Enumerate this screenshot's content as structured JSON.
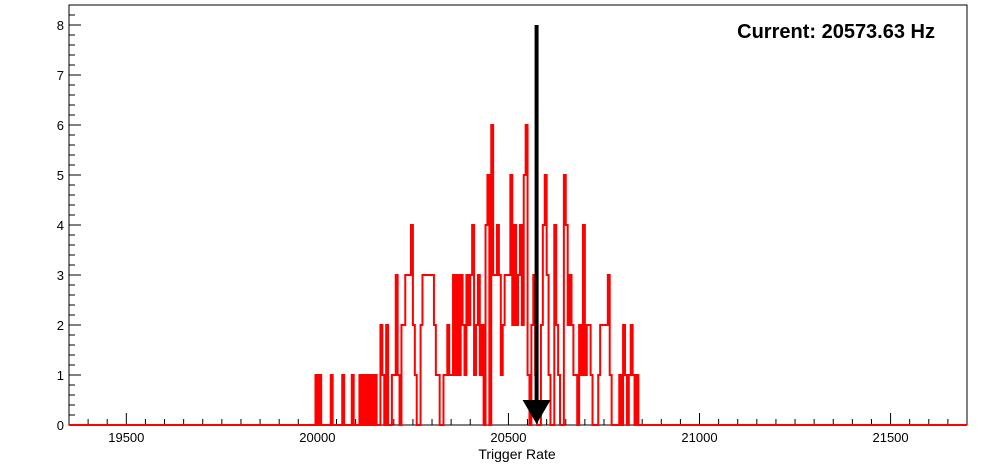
{
  "chart_data": {
    "type": "histogram",
    "xlabel": "Trigger Rate",
    "ylabel": "",
    "title": "",
    "xlim": [
      19350,
      21700
    ],
    "ylim": [
      0,
      8.4
    ],
    "x_ticks": [
      19500,
      20000,
      20500,
      21000,
      21500
    ],
    "y_ticks": [
      0,
      1,
      2,
      3,
      4,
      5,
      6,
      7,
      8
    ],
    "grid": false,
    "series_color": "#ff0000",
    "annotation": {
      "text": "Current: 20573.63 Hz",
      "marker_value": 20573.63,
      "marker_type": "arrow",
      "arrow_top_y": 8.0,
      "arrow_bottom_y": 0.0
    },
    "bin_width": 5,
    "bins": [
      [
        19995,
        1
      ],
      [
        20000,
        0
      ],
      [
        20005,
        1
      ],
      [
        20010,
        0
      ],
      [
        20035,
        1
      ],
      [
        20040,
        0
      ],
      [
        20065,
        1
      ],
      [
        20070,
        0
      ],
      [
        20090,
        1
      ],
      [
        20095,
        0
      ],
      [
        20110,
        1
      ],
      [
        20115,
        0
      ],
      [
        20120,
        1
      ],
      [
        20125,
        0
      ],
      [
        20130,
        1
      ],
      [
        20135,
        0
      ],
      [
        20140,
        1
      ],
      [
        20145,
        0
      ],
      [
        20150,
        1
      ],
      [
        20155,
        0
      ],
      [
        20165,
        2
      ],
      [
        20170,
        1
      ],
      [
        20175,
        0
      ],
      [
        20180,
        2
      ],
      [
        20185,
        0
      ],
      [
        20195,
        1
      ],
      [
        20205,
        3
      ],
      [
        20210,
        1
      ],
      [
        20215,
        0
      ],
      [
        20220,
        2
      ],
      [
        20230,
        3
      ],
      [
        20245,
        4
      ],
      [
        20250,
        2
      ],
      [
        20255,
        1
      ],
      [
        20260,
        0
      ],
      [
        20270,
        2
      ],
      [
        20275,
        3
      ],
      [
        20305,
        2
      ],
      [
        20310,
        1
      ],
      [
        20320,
        0
      ],
      [
        20330,
        1
      ],
      [
        20340,
        2
      ],
      [
        20345,
        1
      ],
      [
        20355,
        3
      ],
      [
        20360,
        1
      ],
      [
        20365,
        3
      ],
      [
        20370,
        1
      ],
      [
        20375,
        3
      ],
      [
        20380,
        2
      ],
      [
        20385,
        1
      ],
      [
        20390,
        3
      ],
      [
        20395,
        2
      ],
      [
        20400,
        3
      ],
      [
        20405,
        4
      ],
      [
        20410,
        1
      ],
      [
        20415,
        2
      ],
      [
        20420,
        3
      ],
      [
        20425,
        1
      ],
      [
        20430,
        2
      ],
      [
        20435,
        0
      ],
      [
        20440,
        4
      ],
      [
        20445,
        5
      ],
      [
        20450,
        0
      ],
      [
        20455,
        6
      ],
      [
        20460,
        3
      ],
      [
        20470,
        4
      ],
      [
        20475,
        3
      ],
      [
        20480,
        1
      ],
      [
        20485,
        2
      ],
      [
        20490,
        3
      ],
      [
        20505,
        5
      ],
      [
        20510,
        2
      ],
      [
        20515,
        4
      ],
      [
        20520,
        2
      ],
      [
        20525,
        3
      ],
      [
        20530,
        4
      ],
      [
        20535,
        2
      ],
      [
        20540,
        5
      ],
      [
        20545,
        6
      ],
      [
        20550,
        1
      ],
      [
        20555,
        0
      ],
      [
        20560,
        2
      ],
      [
        20565,
        3
      ],
      [
        20570,
        1
      ],
      [
        20575,
        0
      ],
      [
        20585,
        2
      ],
      [
        20590,
        4
      ],
      [
        20595,
        5
      ],
      [
        20600,
        3
      ],
      [
        20605,
        1
      ],
      [
        20610,
        0
      ],
      [
        20620,
        4
      ],
      [
        20625,
        2
      ],
      [
        20630,
        1
      ],
      [
        20635,
        0
      ],
      [
        20645,
        5
      ],
      [
        20650,
        4
      ],
      [
        20655,
        2
      ],
      [
        20660,
        3
      ],
      [
        20665,
        2
      ],
      [
        20670,
        1
      ],
      [
        20680,
        0
      ],
      [
        20685,
        2
      ],
      [
        20690,
        1
      ],
      [
        20695,
        4
      ],
      [
        20700,
        1
      ],
      [
        20705,
        2
      ],
      [
        20715,
        1
      ],
      [
        20720,
        0
      ],
      [
        20735,
        1
      ],
      [
        20740,
        2
      ],
      [
        20760,
        3
      ],
      [
        20765,
        1
      ],
      [
        20770,
        0
      ],
      [
        20790,
        1
      ],
      [
        20795,
        0
      ],
      [
        20800,
        2
      ],
      [
        20805,
        1
      ],
      [
        20810,
        0
      ],
      [
        20815,
        1
      ],
      [
        20820,
        2
      ],
      [
        20825,
        1
      ],
      [
        20830,
        0
      ],
      [
        20835,
        1
      ],
      [
        20840,
        0
      ],
      [
        20845,
        0
      ]
    ]
  }
}
